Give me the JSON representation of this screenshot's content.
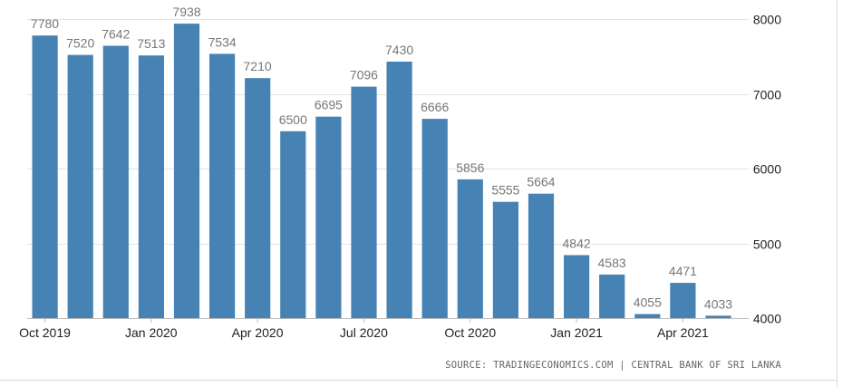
{
  "chart_data": {
    "type": "bar",
    "categories": [
      "Oct 2019",
      "Nov 2019",
      "Dec 2019",
      "Jan 2020",
      "Feb 2020",
      "Mar 2020",
      "Apr 2020",
      "May 2020",
      "Jun 2020",
      "Jul 2020",
      "Aug 2020",
      "Sep 2020",
      "Oct 2020",
      "Nov 2020",
      "Dec 2020",
      "Jan 2021",
      "Feb 2021",
      "Mar 2021",
      "Apr 2021",
      "May 2021"
    ],
    "values": [
      7780,
      7520,
      7642,
      7513,
      7938,
      7534,
      7210,
      6500,
      6695,
      7096,
      7430,
      6666,
      5856,
      5555,
      5664,
      4842,
      4583,
      4055,
      4471,
      4033
    ],
    "value_labels": [
      "7780",
      "7520",
      "7642",
      "7513",
      "7938",
      "7534",
      "7210",
      "6500",
      "6695",
      "7096",
      "7430",
      "6666",
      "5856",
      "5555",
      "5664",
      "4842",
      "4583",
      "4055",
      "4471",
      "4033"
    ],
    "x_ticks": [
      "Oct 2019",
      "Jan 2020",
      "Apr 2020",
      "Jul 2020",
      "Oct 2020",
      "Jan 2021",
      "Apr 2021"
    ],
    "y_ticks": [
      "4000",
      "5000",
      "6000",
      "7000",
      "8000"
    ],
    "ylim": [
      4000,
      8000
    ],
    "y_axis_side": "right",
    "grid": true,
    "bar_color": "#4682b4",
    "title": "",
    "xlabel": "",
    "ylabel": ""
  },
  "source_text": "SOURCE: TRADINGECONOMICS.COM | CENTRAL BANK OF SRI LANKA"
}
